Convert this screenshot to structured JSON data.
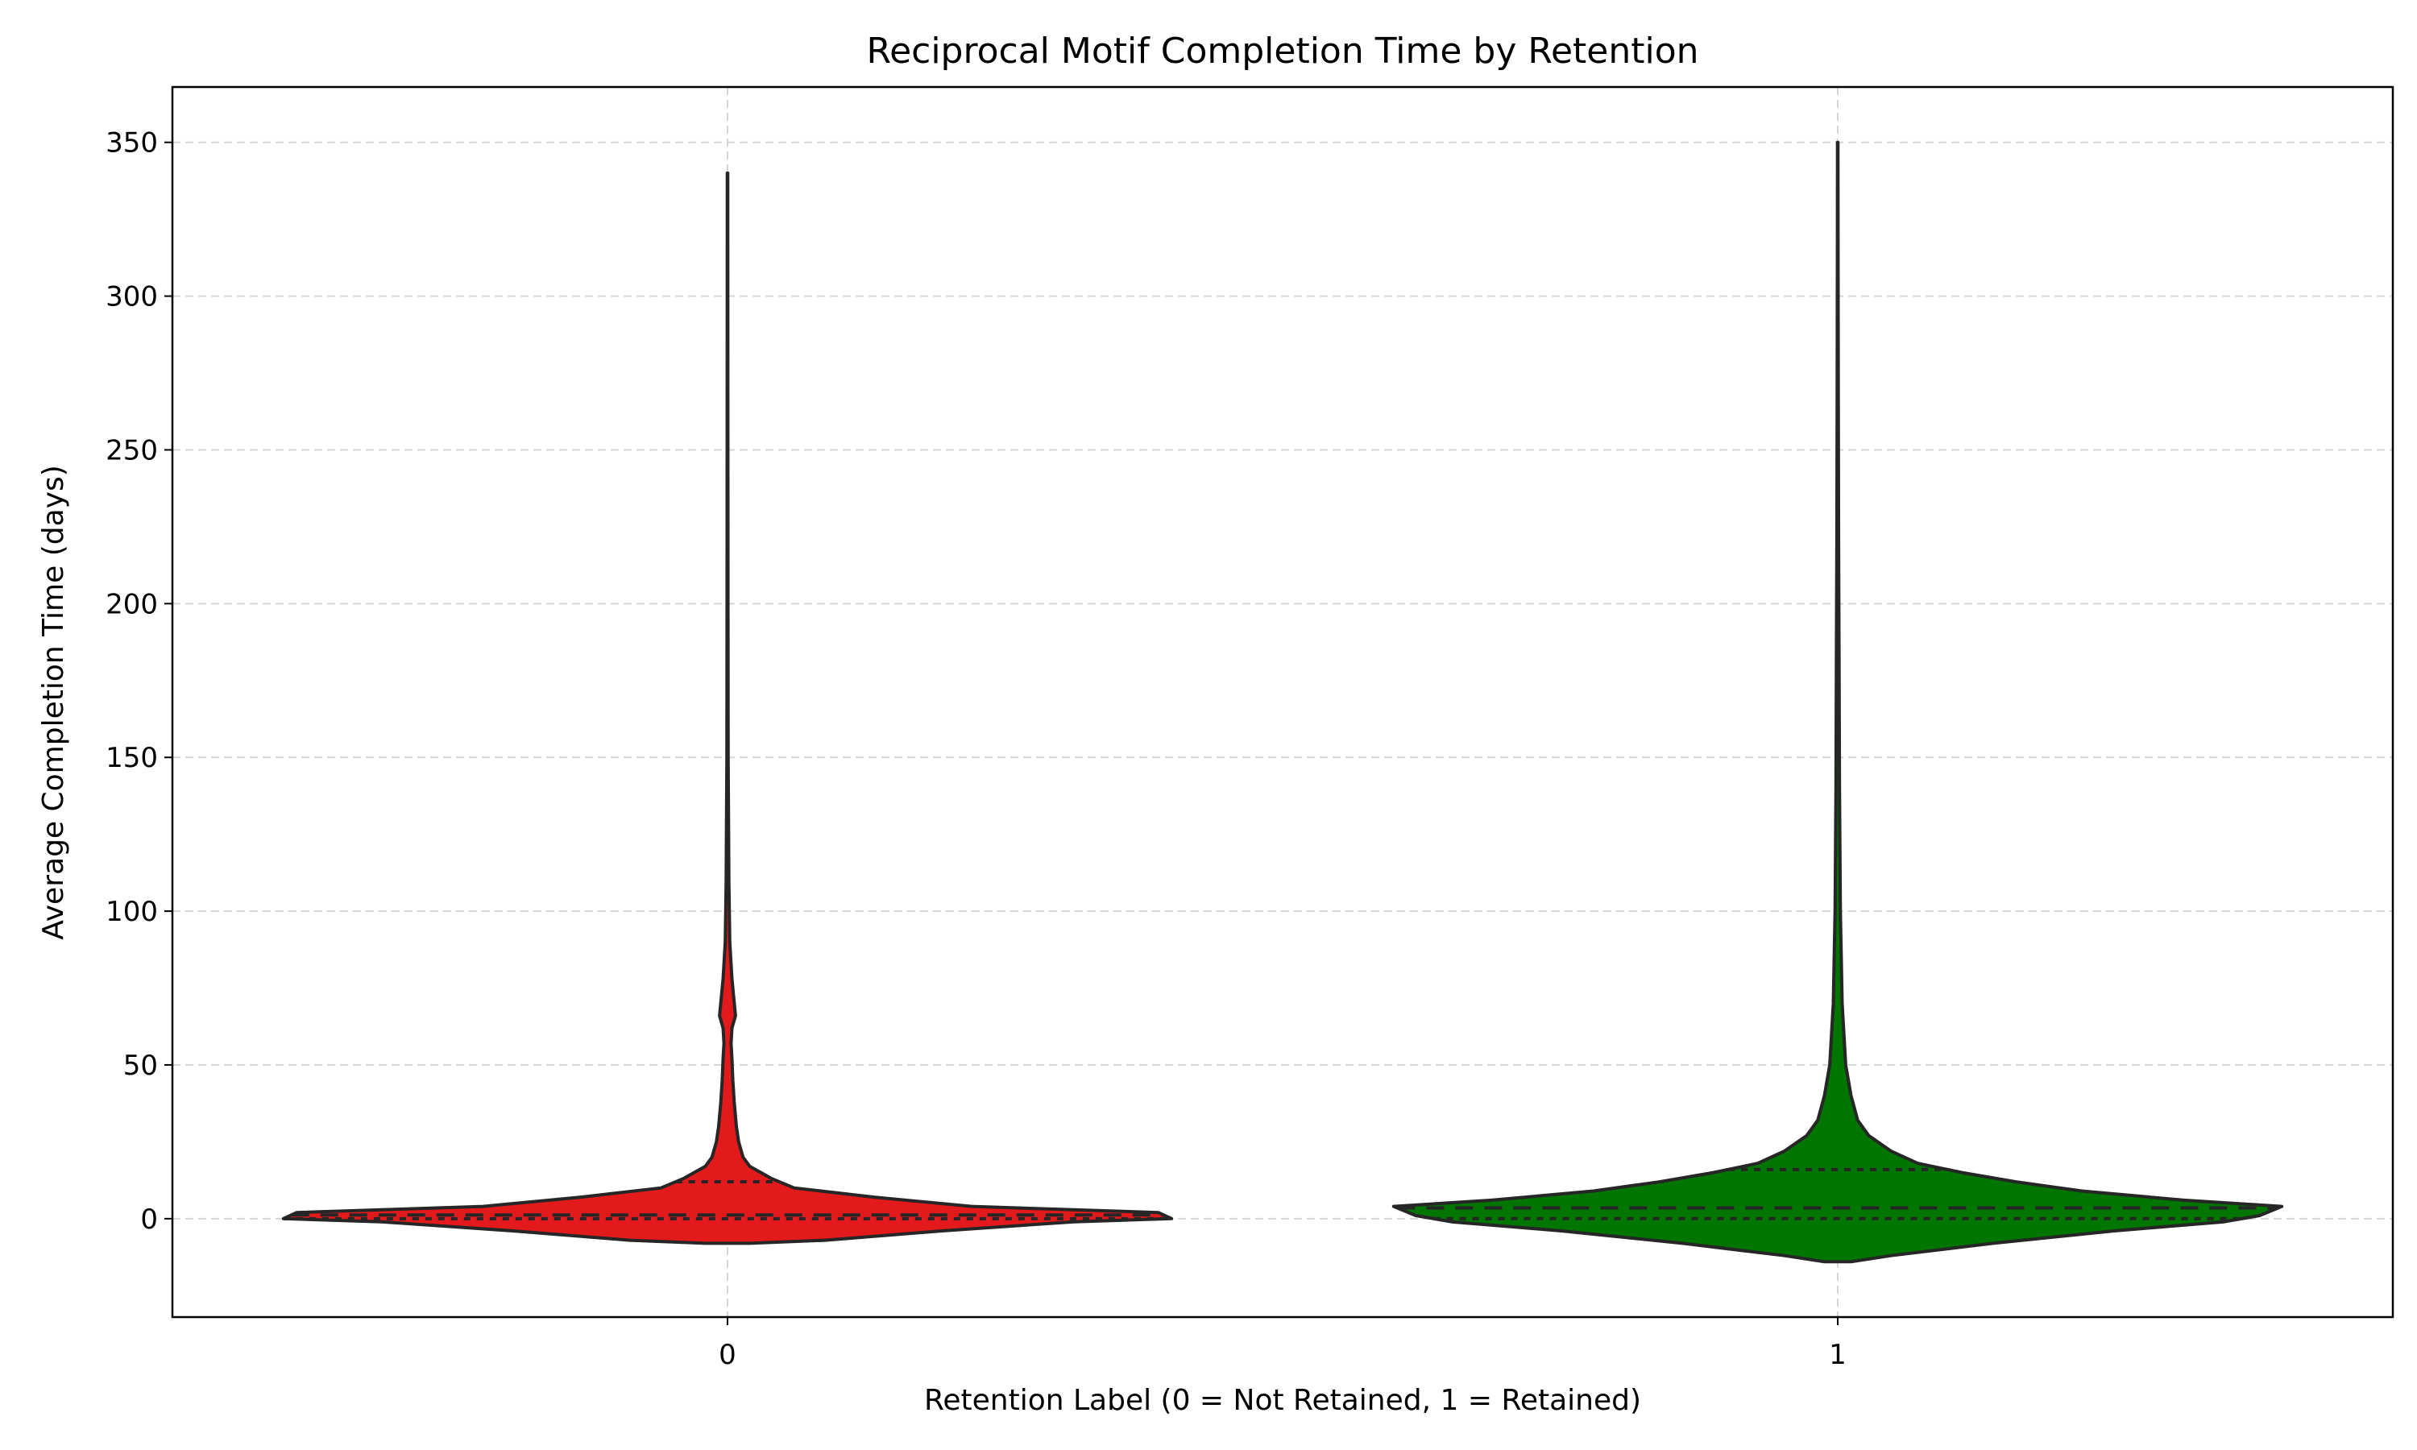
{
  "chart_data": {
    "type": "violin",
    "title": "Reciprocal Motif Completion Time by Retention",
    "xlabel": "Retention Label (0 = Not Retained, 1 = Retained)",
    "ylabel": "Average Completion Time (days)",
    "categories": [
      "0",
      "1"
    ],
    "ylim": [
      -32,
      368
    ],
    "yticks": [
      0,
      50,
      100,
      150,
      200,
      250,
      300,
      350
    ],
    "grid": true,
    "inner": "quartile",
    "series": [
      {
        "category": "0",
        "color": "#e31a1c",
        "quartiles": [
          0,
          1.2,
          12
        ],
        "profile": [
          [
            -8,
            0.05
          ],
          [
            -7,
            0.22
          ],
          [
            -4,
            0.48
          ],
          [
            -1,
            0.78
          ],
          [
            0,
            1.0
          ],
          [
            2,
            0.97
          ],
          [
            4,
            0.55
          ],
          [
            7,
            0.33
          ],
          [
            10,
            0.15
          ],
          [
            13,
            0.1
          ],
          [
            17,
            0.05
          ],
          [
            20,
            0.035
          ],
          [
            25,
            0.025
          ],
          [
            30,
            0.02
          ],
          [
            38,
            0.015
          ],
          [
            45,
            0.012
          ],
          [
            52,
            0.01
          ],
          [
            57,
            0.008
          ],
          [
            62,
            0.01
          ],
          [
            66,
            0.018
          ],
          [
            72,
            0.014
          ],
          [
            78,
            0.01
          ],
          [
            90,
            0.005
          ],
          [
            110,
            0.003
          ],
          [
            150,
            0.0015
          ],
          [
            200,
            0.001
          ],
          [
            280,
            0.0008
          ],
          [
            340,
            0.0005
          ]
        ]
      },
      {
        "category": "1",
        "color": "#007500",
        "quartiles": [
          0,
          3.5,
          16
        ],
        "profile": [
          [
            -14,
            0.03
          ],
          [
            -12,
            0.12
          ],
          [
            -8,
            0.35
          ],
          [
            -4,
            0.62
          ],
          [
            -1,
            0.87
          ],
          [
            1,
            0.95
          ],
          [
            4,
            1.0
          ],
          [
            6,
            0.78
          ],
          [
            9,
            0.55
          ],
          [
            12,
            0.4
          ],
          [
            15,
            0.28
          ],
          [
            18,
            0.18
          ],
          [
            22,
            0.12
          ],
          [
            27,
            0.07
          ],
          [
            32,
            0.045
          ],
          [
            40,
            0.03
          ],
          [
            50,
            0.018
          ],
          [
            70,
            0.01
          ],
          [
            100,
            0.006
          ],
          [
            140,
            0.004
          ],
          [
            180,
            0.003
          ],
          [
            220,
            0.002
          ],
          [
            270,
            0.0012
          ],
          [
            320,
            0.0008
          ],
          [
            350,
            0.0005
          ]
        ]
      }
    ]
  }
}
